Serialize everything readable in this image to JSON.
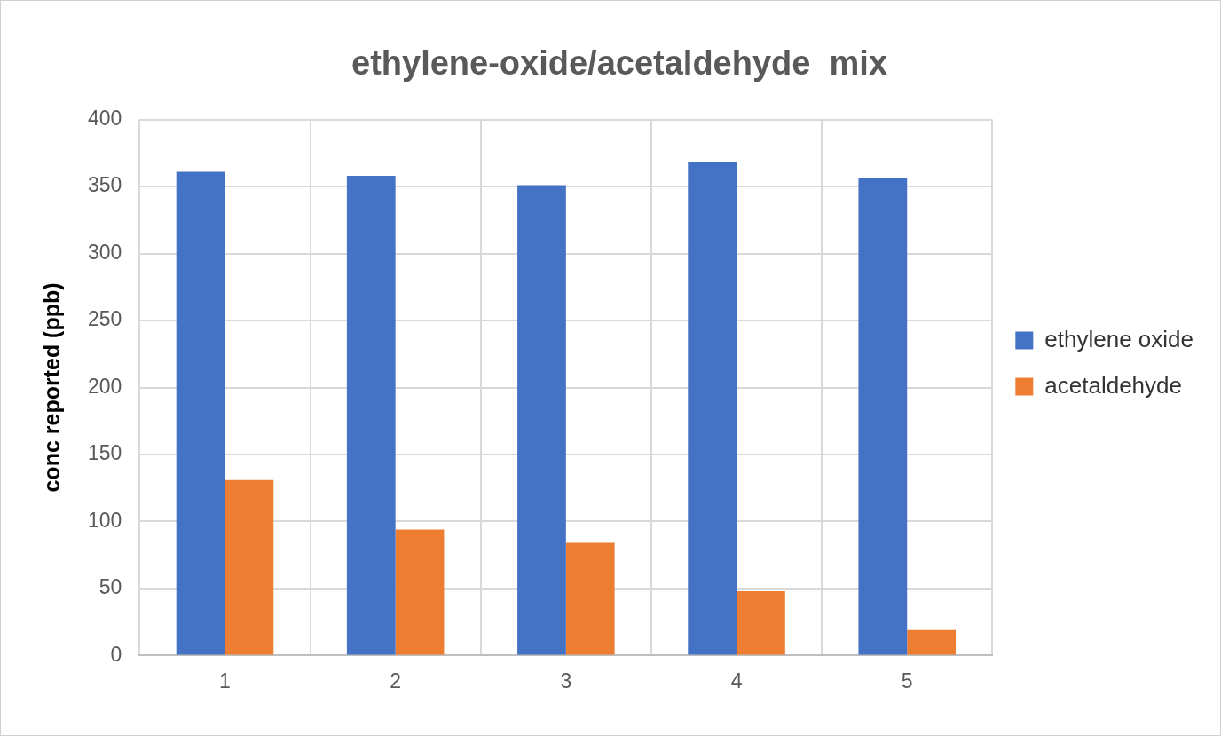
{
  "chart_data": {
    "type": "bar",
    "title": "ethylene-oxide/acetaldehyde  mix",
    "ylabel": "conc reported (ppb)",
    "categories": [
      "1",
      "2",
      "3",
      "4",
      "5"
    ],
    "series": [
      {
        "name": "ethylene oxide",
        "color": "#4472c4",
        "values": [
          361,
          358,
          351,
          368,
          356
        ]
      },
      {
        "name": "acetaldehyde",
        "color": "#ed7d31",
        "values": [
          131,
          94,
          84,
          48,
          19
        ]
      }
    ],
    "ylim": [
      0,
      400
    ],
    "yticks": [
      0,
      50,
      100,
      150,
      200,
      250,
      300,
      350,
      400
    ],
    "grid": true,
    "legend": "right"
  }
}
